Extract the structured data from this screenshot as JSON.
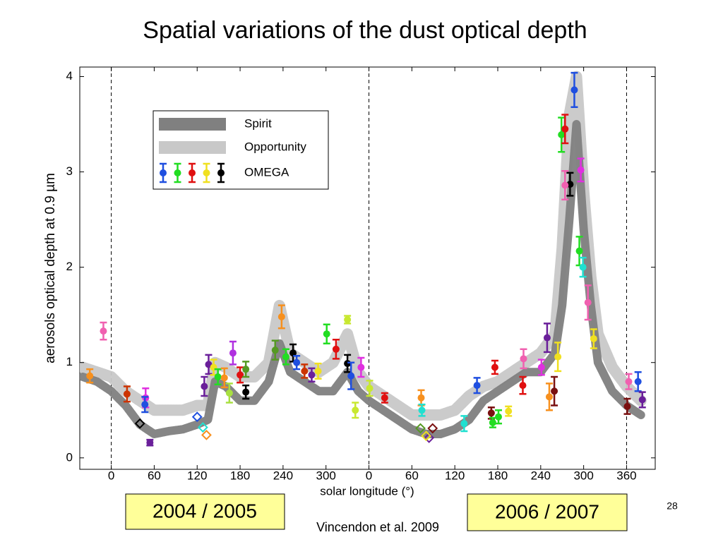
{
  "chart_data": {
    "type": "scatter",
    "title": "Spatial variations of the dust optical depth",
    "xlabel": "solar longitude (°)",
    "ylabel": "aerosols optical depth at 0.9 µm",
    "xlim": [
      -44,
      760
    ],
    "ylim": [
      -0.12,
      4.1
    ],
    "xticks": [
      0,
      60,
      120,
      180,
      240,
      300,
      {
        "value": 360,
        "label": "0"
      },
      {
        "value": 420,
        "label": "60"
      },
      {
        "value": 480,
        "label": "120"
      },
      {
        "value": 540,
        "label": "180"
      },
      {
        "value": 600,
        "label": "240"
      },
      {
        "value": 660,
        "label": "300"
      },
      {
        "value": 720,
        "label": "360"
      }
    ],
    "yticks": [
      0,
      1,
      2,
      3,
      4
    ],
    "vlines": [
      0,
      360,
      720
    ],
    "legend": "upper left",
    "series": [
      {
        "name": "Spirit",
        "color": "#808080",
        "x": [
          -40,
          -20,
          0,
          20,
          40,
          60,
          80,
          100,
          120,
          135,
          145,
          160,
          180,
          200,
          220,
          235,
          250,
          270,
          290,
          310,
          330,
          345,
          360,
          380,
          400,
          420,
          440,
          460,
          480,
          500,
          520,
          540,
          560,
          580,
          600,
          620,
          630,
          640,
          650,
          660,
          670,
          680,
          700,
          720,
          740
        ],
        "values": [
          0.85,
          0.8,
          0.7,
          0.55,
          0.35,
          0.25,
          0.28,
          0.3,
          0.35,
          0.4,
          0.8,
          0.75,
          0.6,
          0.6,
          0.8,
          1.2,
          0.9,
          0.8,
          0.7,
          0.7,
          0.9,
          0.7,
          0.6,
          0.5,
          0.4,
          0.3,
          0.25,
          0.25,
          0.3,
          0.4,
          0.6,
          0.7,
          0.8,
          0.9,
          0.9,
          1.1,
          1.6,
          2.5,
          3.5,
          2.4,
          1.6,
          1.0,
          0.7,
          0.55,
          0.45
        ]
      },
      {
        "name": "Opportunity",
        "color": "#c8c8c8",
        "x": [
          -40,
          -20,
          0,
          20,
          40,
          60,
          80,
          100,
          120,
          135,
          145,
          160,
          180,
          200,
          220,
          235,
          250,
          270,
          290,
          310,
          330,
          345,
          360,
          380,
          400,
          420,
          440,
          460,
          480,
          500,
          520,
          540,
          560,
          580,
          600,
          620,
          630,
          640,
          650,
          660,
          670,
          680,
          700,
          720,
          740
        ],
        "values": [
          0.95,
          0.9,
          0.85,
          0.7,
          0.6,
          0.5,
          0.5,
          0.5,
          0.55,
          0.55,
          1.0,
          0.95,
          0.85,
          0.85,
          1.0,
          1.6,
          1.1,
          1.0,
          0.9,
          1.0,
          1.3,
          0.9,
          0.75,
          0.65,
          0.55,
          0.45,
          0.45,
          0.45,
          0.5,
          0.65,
          0.75,
          0.8,
          0.9,
          1.0,
          1.1,
          1.3,
          2.2,
          3.6,
          4.0,
          2.8,
          1.9,
          1.3,
          0.95,
          0.75,
          0.6
        ]
      },
      {
        "name": "OMEGA",
        "legend_colors": [
          "#1f4fe0",
          "#22dd22",
          "#e01010",
          "#f0e020",
          "#000000"
        ],
        "x": [
          -30,
          -11,
          22,
          48,
          47,
          54,
          130,
          136,
          143,
          149,
          158,
          165,
          170,
          180,
          188,
          188,
          229,
          238,
          244,
          254,
          259,
          270,
          280,
          289,
          301,
          314,
          330,
          330,
          335,
          349,
          361,
          341,
          382,
          433,
          434,
          493,
          511,
          531,
          533,
          536,
          541,
          555,
          575,
          576,
          601,
          609,
          612,
          619,
          624,
          629,
          634,
          641,
          634,
          647,
          656,
          654,
          659,
          666,
          674,
          723,
          736,
          721,
          742
        ],
        "values": [
          0.86,
          1.33,
          0.67,
          0.63,
          0.56,
          0.16,
          0.75,
          0.98,
          0.95,
          0.85,
          0.84,
          0.68,
          1.1,
          0.87,
          0.69,
          0.93,
          1.13,
          1.48,
          1.06,
          1.1,
          1.0,
          0.91,
          0.87,
          0.91,
          1.3,
          1.14,
          0.99,
          1.45,
          0.86,
          0.95,
          0.73,
          0.5,
          0.63,
          0.63,
          0.5,
          0.36,
          0.76,
          0.47,
          0.37,
          0.95,
          0.43,
          0.49,
          0.76,
          1.04,
          0.95,
          1.26,
          0.64,
          0.7,
          1.06,
          3.39,
          3.45,
          2.87,
          2.86,
          3.86,
          3.02,
          2.17,
          2.0,
          1.63,
          1.25,
          0.8,
          0.8,
          0.54,
          0.61
        ],
        "errors": [
          0.07,
          0.09,
          0.08,
          0.1,
          0.08,
          0.03,
          0.1,
          0.1,
          0.08,
          0.08,
          0.1,
          0.1,
          0.12,
          0.08,
          0.07,
          0.08,
          0.1,
          0.12,
          0.08,
          0.09,
          0.07,
          0.07,
          0.07,
          0.08,
          0.1,
          0.1,
          0.09,
          0.04,
          0.14,
          0.1,
          0.08,
          0.08,
          0.05,
          0.08,
          0.06,
          0.08,
          0.08,
          0.06,
          0.05,
          0.07,
          0.07,
          0.05,
          0.09,
          0.1,
          0.08,
          0.15,
          0.14,
          0.15,
          0.15,
          0.18,
          0.15,
          0.12,
          0.15,
          0.18,
          0.12,
          0.15,
          0.1,
          0.18,
          0.1,
          0.08,
          0.1,
          0.08,
          0.08
        ],
        "colors": [
          "#f7901e",
          "#f060b0",
          "#cc3300",
          "#e030e0",
          "#1f4fe0",
          "#6a1f9a",
          "#6a1f9a",
          "#6a1f9a",
          "#f0e020",
          "#22dd22",
          "#f7901e",
          "#a8e040",
          "#b030e0",
          "#e01010",
          "#000000",
          "#559922",
          "#559922",
          "#f7901e",
          "#22dd22",
          "#000000",
          "#1f4fe0",
          "#cc3300",
          "#6a1f9a",
          "#f0e020",
          "#22dd22",
          "#e01010",
          "#000000",
          "#c8e830",
          "#1f4fe0",
          "#e030e0",
          "#c8e830",
          "#c8e830",
          "#e01010",
          "#f7901e",
          "#20e0d0",
          "#20e0d0",
          "#1f4fe0",
          "#7a1010",
          "#22dd22",
          "#e01010",
          "#22dd22",
          "#f0e020",
          "#e01010",
          "#f060b0",
          "#e030e0",
          "#6a1f9a",
          "#f7901e",
          "#7a1010",
          "#f0e020",
          "#22dd22",
          "#e01010",
          "#000000",
          "#f060b0",
          "#1f4fe0",
          "#e030e0",
          "#22dd22",
          "#20e0d0",
          "#f060b0",
          "#f0e020",
          "#f060b0",
          "#1f4fe0",
          "#7a1010",
          "#6a1f9a"
        ]
      },
      {
        "x": [
          40,
          120,
          128,
          133,
          432,
          444,
          449,
          440
        ],
        "values": [
          0.36,
          0.43,
          0.32,
          0.24,
          0.31,
          0.21,
          0.31,
          0.23
        ],
        "colors": [
          "#000000",
          "#1f4fe0",
          "#20e0d0",
          "#f7901e",
          "#559922",
          "#6a1f9a",
          "#7a1010",
          "#f0e020"
        ]
      }
    ],
    "annotations": [
      "2004 / 2005",
      "2006 / 2007"
    ],
    "citation": "Vincendon et al. 2009",
    "page_number": "28"
  }
}
